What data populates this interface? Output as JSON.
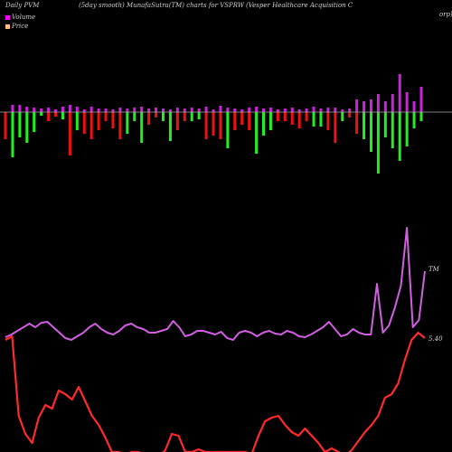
{
  "header": {
    "left": "Daily PVM",
    "middle": "(5day smooth) MunafaSutra(TM) charts for VSPRW",
    "right": "(Vesper Healthcare   Acquisition  C",
    "right_wrap": "orp)"
  },
  "legend": [
    {
      "label": "Volume",
      "color": "#ff00ff"
    },
    {
      "label": "Price",
      "color": "#ffbf7f"
    }
  ],
  "colors": {
    "up": "#22ee22",
    "down": "#ee1111",
    "purple": "#cc22dd",
    "volume_line": "#d060e0",
    "price_line": "#ff2a2a",
    "background": "#000000",
    "axis": "#aaaaaa"
  },
  "chart_data": {
    "type": "bar",
    "bars": [
      {
        "up": 0,
        "down": 30,
        "c": "r"
      },
      {
        "up": 8,
        "down": 50,
        "c": "g"
      },
      {
        "up": 8,
        "down": 28,
        "c": "g"
      },
      {
        "up": 6,
        "down": 34,
        "c": "g"
      },
      {
        "up": 5,
        "down": 22,
        "c": "g"
      },
      {
        "up": 4,
        "down": 4,
        "c": "g"
      },
      {
        "up": 5,
        "down": 10,
        "c": "r"
      },
      {
        "up": 3,
        "down": 5,
        "c": "r"
      },
      {
        "up": 6,
        "down": 8,
        "c": "g"
      },
      {
        "up": 8,
        "down": 48,
        "c": "r"
      },
      {
        "up": 6,
        "down": 20,
        "c": "g"
      },
      {
        "up": 3,
        "down": 24,
        "c": "r"
      },
      {
        "up": 6,
        "down": 30,
        "c": "r"
      },
      {
        "up": 4,
        "down": 20,
        "c": "r"
      },
      {
        "up": 4,
        "down": 10,
        "c": "r"
      },
      {
        "up": 3,
        "down": 18,
        "c": "r"
      },
      {
        "up": 5,
        "down": 30,
        "c": "r"
      },
      {
        "up": 4,
        "down": 24,
        "c": "g"
      },
      {
        "up": 5,
        "down": 10,
        "c": "g"
      },
      {
        "up": 6,
        "down": 34,
        "c": "g"
      },
      {
        "up": 4,
        "down": 14,
        "c": "r"
      },
      {
        "up": 5,
        "down": 6,
        "c": "r"
      },
      {
        "up": 4,
        "down": 10,
        "c": "g"
      },
      {
        "up": 3,
        "down": 32,
        "c": "g"
      },
      {
        "up": 5,
        "down": 20,
        "c": "r"
      },
      {
        "up": 4,
        "down": 10,
        "c": "r"
      },
      {
        "up": 5,
        "down": 10,
        "c": "g"
      },
      {
        "up": 4,
        "down": 8,
        "c": "g"
      },
      {
        "up": 6,
        "down": 30,
        "c": "r"
      },
      {
        "up": 3,
        "down": 26,
        "c": "r"
      },
      {
        "up": 7,
        "down": 30,
        "c": "r"
      },
      {
        "up": 5,
        "down": 40,
        "c": "g"
      },
      {
        "up": 4,
        "down": 20,
        "c": "r"
      },
      {
        "up": 3,
        "down": 14,
        "c": "r"
      },
      {
        "up": 5,
        "down": 20,
        "c": "r"
      },
      {
        "up": 6,
        "down": 46,
        "c": "g"
      },
      {
        "up": 4,
        "down": 26,
        "c": "g"
      },
      {
        "up": 5,
        "down": 20,
        "c": "g"
      },
      {
        "up": 3,
        "down": 10,
        "c": "r"
      },
      {
        "up": 4,
        "down": 10,
        "c": "r"
      },
      {
        "up": 5,
        "down": 14,
        "c": "r"
      },
      {
        "up": 3,
        "down": 18,
        "c": "r"
      },
      {
        "up": 4,
        "down": 10,
        "c": "r"
      },
      {
        "up": 6,
        "down": 16,
        "c": "g"
      },
      {
        "up": 4,
        "down": 16,
        "c": "g"
      },
      {
        "up": 5,
        "down": 20,
        "c": "r"
      },
      {
        "up": 5,
        "down": 34,
        "c": "r"
      },
      {
        "up": 3,
        "down": 10,
        "c": "g"
      },
      {
        "up": 4,
        "down": 6,
        "c": "r"
      },
      {
        "up": 14,
        "down": 24,
        "c": "r"
      },
      {
        "up": 12,
        "down": 30,
        "c": "g"
      },
      {
        "up": 14,
        "down": 44,
        "c": "g"
      },
      {
        "up": 20,
        "down": 68,
        "c": "g"
      },
      {
        "up": 12,
        "down": 28,
        "c": "g"
      },
      {
        "up": 20,
        "down": 40,
        "c": "g"
      },
      {
        "up": 42,
        "down": 54,
        "c": "g"
      },
      {
        "up": 22,
        "down": 38,
        "c": "g"
      },
      {
        "up": 12,
        "down": 18,
        "c": "g"
      },
      {
        "up": 28,
        "down": 10,
        "c": "g"
      }
    ],
    "volume_line": [
      373,
      370,
      366,
      362,
      358,
      362,
      357,
      356,
      362,
      368,
      374,
      376,
      372,
      368,
      362,
      358,
      364,
      368,
      370,
      366,
      360,
      358,
      362,
      364,
      368,
      368,
      366,
      364,
      355,
      362,
      372,
      370,
      366,
      366,
      368,
      370,
      367,
      374,
      376,
      368,
      366,
      368,
      372,
      368,
      366,
      369,
      370,
      366,
      368,
      372,
      373,
      370,
      366,
      362,
      356,
      364,
      372,
      370,
      364,
      368,
      370,
      370,
      314,
      368,
      360,
      340,
      316,
      252,
      362,
      354,
      300
    ],
    "price_line": [
      376,
      372,
      460,
      480,
      490,
      462,
      448,
      452,
      432,
      436,
      442,
      428,
      444,
      460,
      470,
      484,
      500,
      500,
      502,
      500,
      500,
      505,
      508,
      505,
      498,
      480,
      482,
      500,
      500,
      497,
      500,
      500,
      500,
      500,
      500,
      500,
      500,
      502,
      482,
      466,
      462,
      460,
      470,
      478,
      482,
      474,
      482,
      490,
      500,
      496,
      500,
      504,
      498,
      488,
      478,
      470,
      460,
      440,
      436,
      424,
      398,
      376,
      368,
      374
    ],
    "volume_label": "TM",
    "price_label": "5.40",
    "baseline_y": 124
  }
}
